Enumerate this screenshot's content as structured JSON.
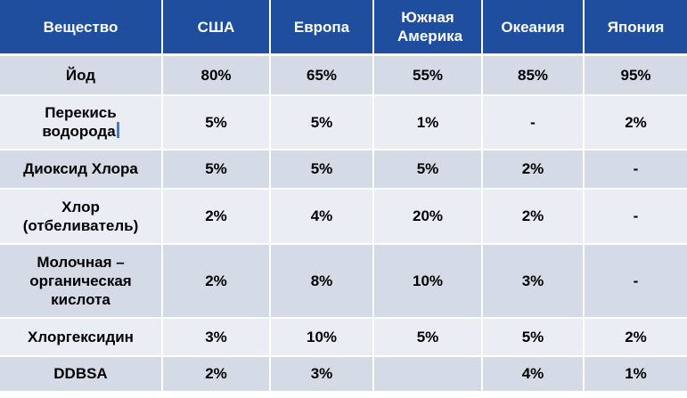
{
  "table": {
    "headers": [
      "Вещество",
      "США",
      "Европа",
      "Южная Америка",
      "Океания",
      "Япония"
    ],
    "rows": [
      {
        "substance": "Йод",
        "values": [
          "80%",
          "65%",
          "55%",
          "85%",
          "95%"
        ]
      },
      {
        "substance": "Перекись водорода",
        "values": [
          "5%",
          "5%",
          "1%",
          "-",
          "2%"
        ]
      },
      {
        "substance": "Диоксид Хлора",
        "values": [
          "5%",
          "5%",
          "5%",
          "2%",
          "-"
        ]
      },
      {
        "substance": "Хлор (отбеливатель)",
        "values": [
          "2%",
          "4%",
          "20%",
          "2%",
          "-"
        ]
      },
      {
        "substance": "Молочная – органическая кислота",
        "values": [
          "2%",
          "8%",
          "10%",
          "3%",
          "-"
        ]
      },
      {
        "substance": "Хлоргексидин",
        "values": [
          "3%",
          "10%",
          "5%",
          "5%",
          "2%"
        ]
      },
      {
        "substance": "DDBSA",
        "values": [
          "2%",
          "3%",
          "",
          "4%",
          "1%"
        ]
      }
    ]
  },
  "colors": {
    "header_bg": "#1f4e9e",
    "row_odd_bg": "#d4dbe7",
    "row_even_bg": "#eaedf3"
  }
}
